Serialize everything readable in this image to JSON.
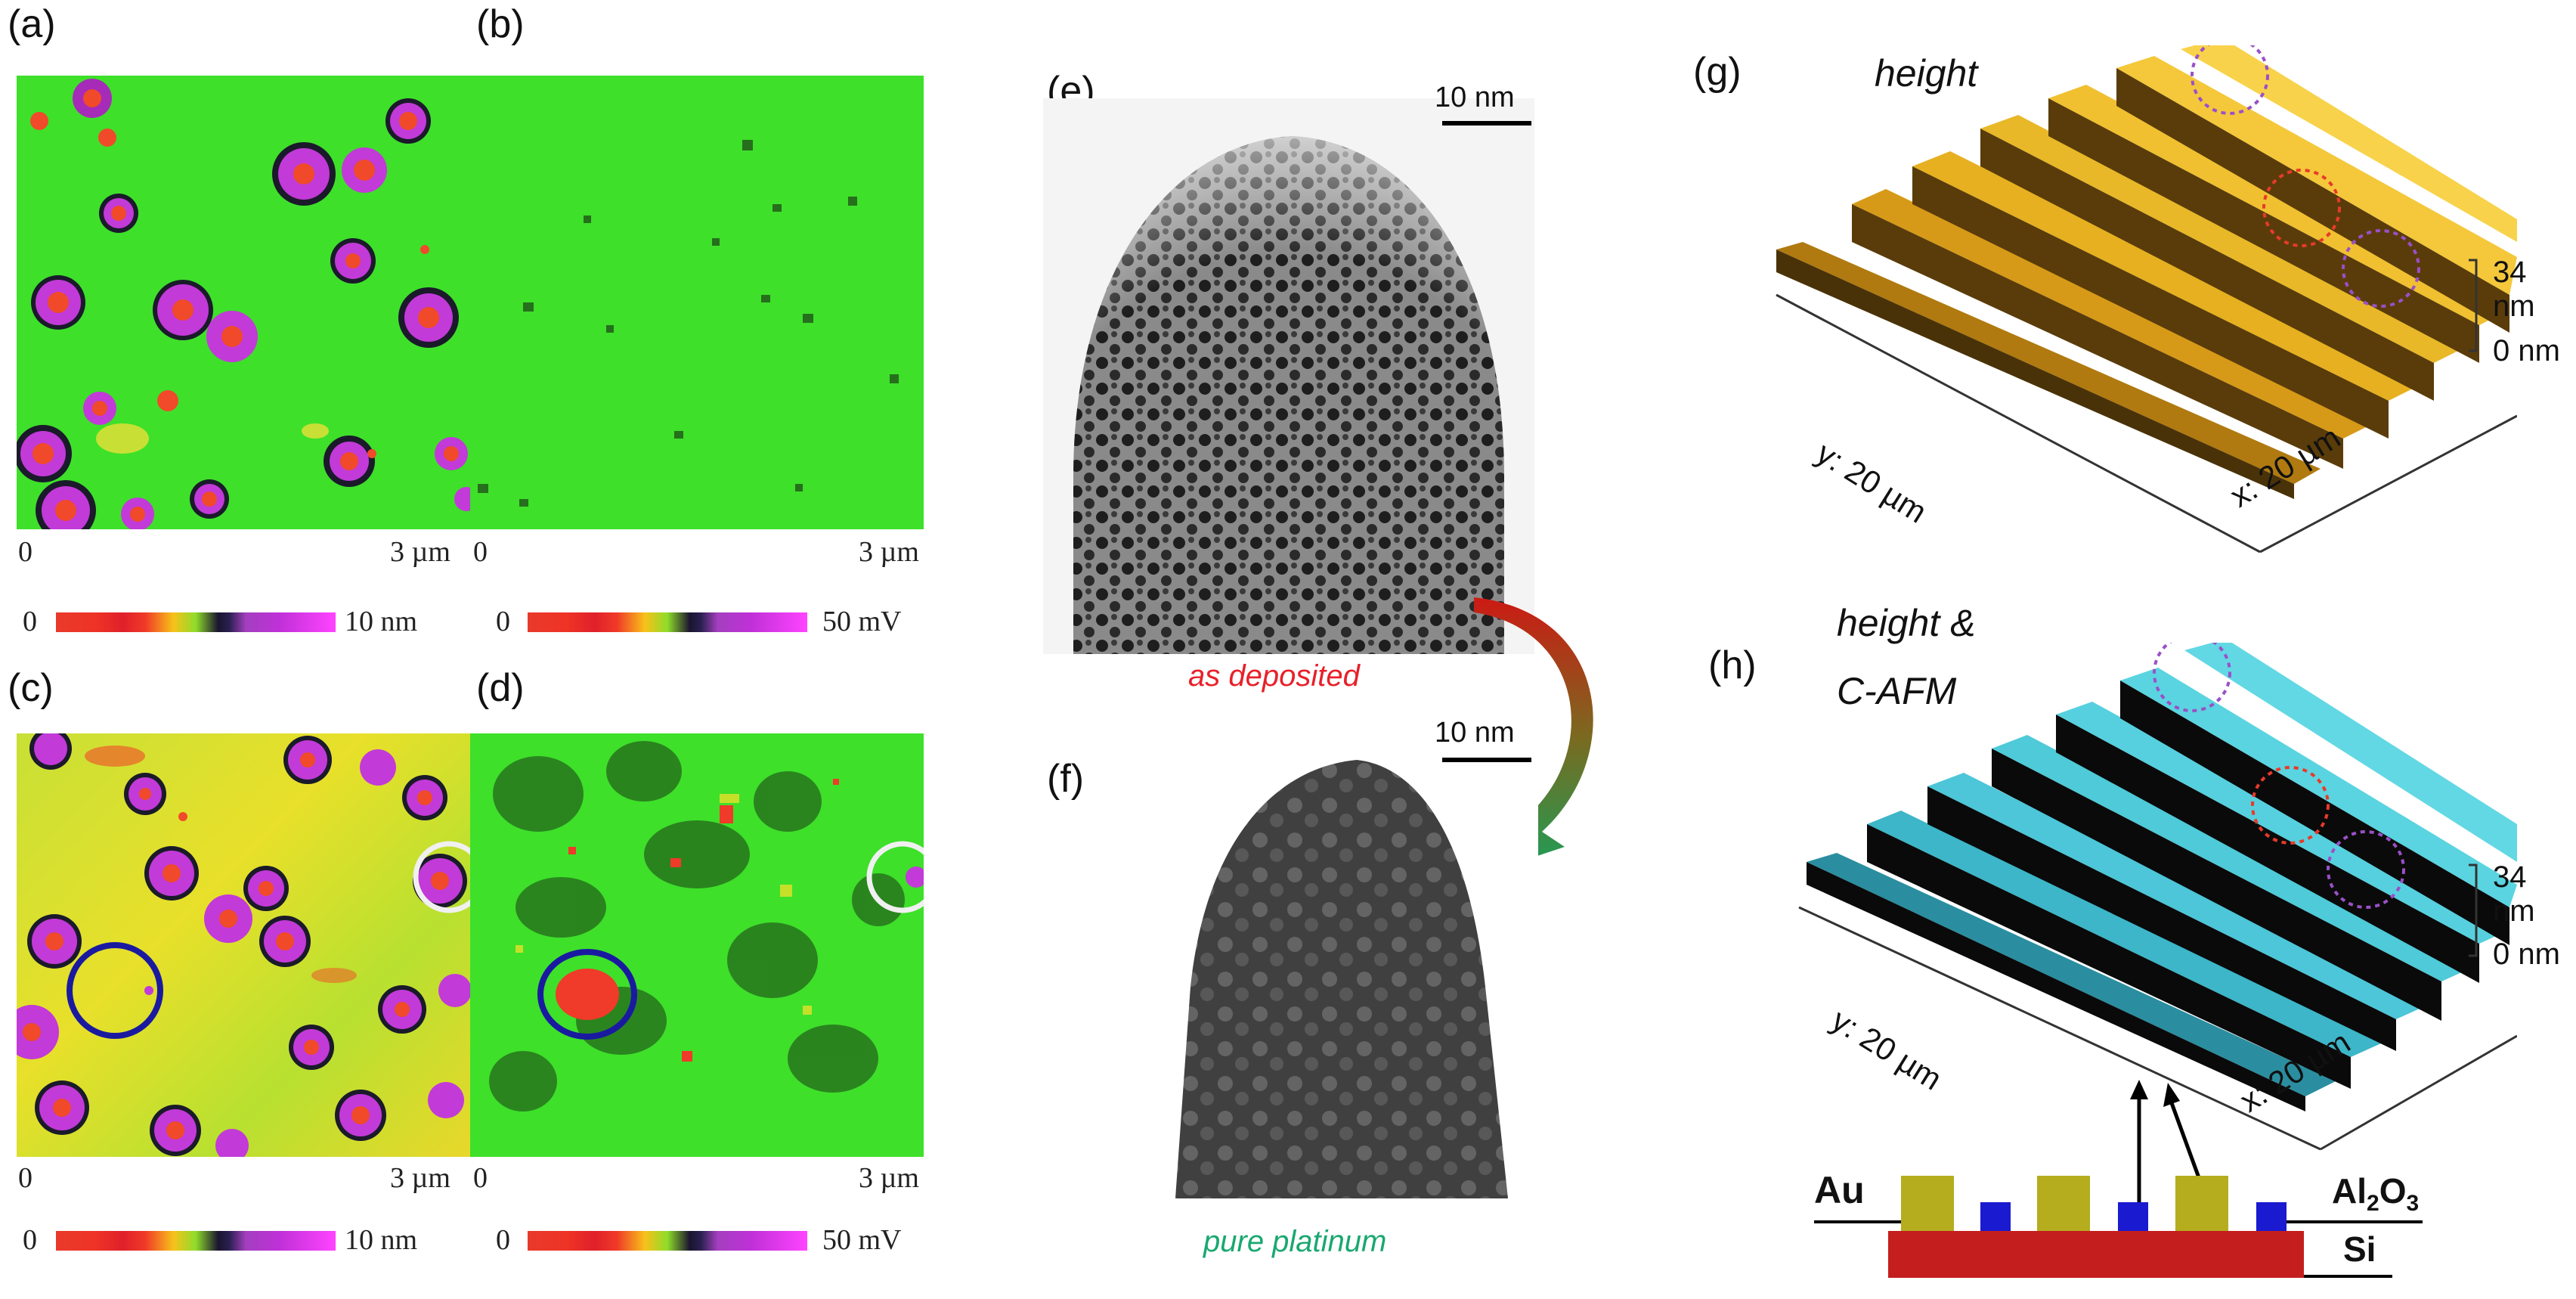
{
  "panels": {
    "a": "(a)",
    "b": "(b)",
    "c": "(c)",
    "d": "(d)",
    "e": "(e)",
    "f": "(f)",
    "g": "(g)",
    "h": "(h)"
  },
  "afm_axes": {
    "zero": "0",
    "length": "3 µm"
  },
  "colorbars": {
    "height_max": "10 nm",
    "current_max": "50 mV",
    "min": "0"
  },
  "tem": {
    "scale_e": "10 nm",
    "scale_f": "10 nm",
    "caption_e": "as deposited",
    "caption_f": "pure platinum",
    "caption_e_color": "#e8202a",
    "caption_f_color": "#1aa870"
  },
  "plot3d": {
    "g_title": "height",
    "h_title_line1": "height &",
    "h_title_line2": "C-AFM",
    "z_top": "34 nm",
    "z_bottom": "0 nm",
    "y_axis": "y: 20 µm",
    "x_axis": "x: 20 µm"
  },
  "schematic": {
    "au": "Au",
    "al2o3_main": "Al",
    "al2o3_sub": "2",
    "al2o3_end": "O",
    "al2o3_sub2": "3",
    "si": "Si",
    "au_color": "#b5ad1e",
    "al2o3_color": "#1a1ad0",
    "si_color": "#c41e1e"
  }
}
